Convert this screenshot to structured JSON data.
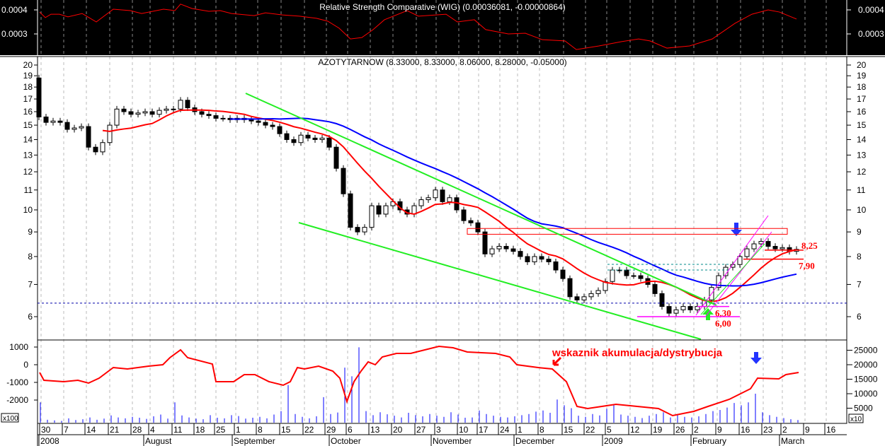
{
  "chart_data": [
    {
      "type": "line",
      "title": "Relative Strength Comparative (WIG) (0.00036081, -0.00000864)",
      "ylim": [
        0.00022,
        0.00043
      ],
      "yticks": [
        "0.0004",
        "0.0003"
      ],
      "ytick_values": [
        0.0004,
        0.0003
      ],
      "x_unit": "trading-step",
      "points": [
        [
          0.1,
          0.000391
        ],
        [
          0.9,
          0.000368
        ],
        [
          1.7,
          0.000382
        ],
        [
          2.9,
          0.000382
        ],
        [
          4.1,
          0.000371
        ],
        [
          6.1,
          0.000385
        ],
        [
          8.1,
          0.00035
        ],
        [
          10.5,
          0.000403
        ],
        [
          12.9,
          0.000397
        ],
        [
          14.5,
          0.000385
        ],
        [
          17.6,
          0.000403
        ],
        [
          19.2,
          0.000397
        ],
        [
          20,
          0.000424
        ],
        [
          21.6,
          0.000406
        ],
        [
          24,
          0.000394
        ],
        [
          25.6,
          0.000397
        ],
        [
          27.2,
          0.000385
        ],
        [
          30.4,
          0.000376
        ],
        [
          32,
          0.000388
        ],
        [
          34.4,
          0.000379
        ],
        [
          36.8,
          0.000374
        ],
        [
          39.2,
          0.000365
        ],
        [
          40.8,
          0.000353
        ],
        [
          42.4,
          0.000324
        ],
        [
          44,
          0.000279
        ],
        [
          45.6,
          0.000285
        ],
        [
          47.2,
          0.000318
        ],
        [
          48.8,
          0.000359
        ],
        [
          52,
          0.000397
        ],
        [
          53.6,
          0.000374
        ],
        [
          57.5,
          0.000382
        ],
        [
          59.1,
          0.00035
        ],
        [
          61.5,
          0.000359
        ],
        [
          63.1,
          0.000318
        ],
        [
          66.3,
          0.0003
        ],
        [
          68.7,
          0.000303
        ],
        [
          71.1,
          0.000276
        ],
        [
          74.3,
          0.000271
        ],
        [
          75.9,
          0.000235
        ],
        [
          79.1,
          0.00025
        ],
        [
          82.3,
          0.000268
        ],
        [
          84.7,
          0.000279
        ],
        [
          86.3,
          0.000271
        ],
        [
          88.7,
          0.000241
        ],
        [
          91.9,
          0.00025
        ],
        [
          95.1,
          0.000279
        ],
        [
          98.3,
          0.000344
        ],
        [
          100.7,
          0.000382
        ],
        [
          103,
          0.0004
        ],
        [
          104.6,
          0.000391
        ],
        [
          107,
          0.000362
        ]
      ]
    },
    {
      "type": "candlestick",
      "title": "AZOTYTARNOW (8.33000, 8.33000, 8.06000, 8.28000, -0.05000)",
      "yscale": "log",
      "ylim": [
        5.2,
        21
      ],
      "yticks": [
        "20",
        "19",
        "18",
        "17",
        "16",
        "15",
        "14",
        "13",
        "12",
        "11",
        "10",
        "9",
        "8",
        "7",
        "6"
      ],
      "first_open": 18.8,
      "closes": [
        15.6,
        15.2,
        15.3,
        15.2,
        14.7,
        14.8,
        14.9,
        13.5,
        13.2,
        13.8,
        15.0,
        16.2,
        16.0,
        15.8,
        15.9,
        16.0,
        15.8,
        16.1,
        16.2,
        16.2,
        16.9,
        16.3,
        16.0,
        15.8,
        15.7,
        15.5,
        15.5,
        15.4,
        15.5,
        15.4,
        15.3,
        15.2,
        15.0,
        14.9,
        14.4,
        14.0,
        13.8,
        14.3,
        14.1,
        14.0,
        14.1,
        13.5,
        12.2,
        10.8,
        9.2,
        9.0,
        9.2,
        10.2,
        9.8,
        10.2,
        10.4,
        10.0,
        9.8,
        10.2,
        10.5,
        10.6,
        11.0,
        10.4,
        10.6,
        10.0,
        9.5,
        9.4,
        9.0,
        8.1,
        8.3,
        8.4,
        8.3,
        8.2,
        8.0,
        7.8,
        8.0,
        7.9,
        7.8,
        7.5,
        7.2,
        6.6,
        6.5,
        6.6,
        6.7,
        6.8,
        7.1,
        7.5,
        7.5,
        7.3,
        7.3,
        7.2,
        7.0,
        6.7,
        6.3,
        6.1,
        6.2,
        6.3,
        6.2,
        6.3,
        6.5,
        6.9,
        7.3,
        7.6,
        7.7,
        8.0,
        8.3,
        8.5,
        8.6,
        8.4,
        8.3,
        8.35,
        8.2,
        8.28
      ],
      "moving_averages": [
        {
          "name": "short",
          "color": "#ff0000",
          "period": 10
        },
        {
          "name": "long",
          "color": "#0000ff",
          "period": 28
        }
      ],
      "levels": [
        {
          "label": "8,25",
          "value": 8.25
        },
        {
          "label": "7,90",
          "value": 7.9
        },
        {
          "label": "6,30",
          "value": 6.3
        },
        {
          "label": "6,00",
          "value": 6.0
        }
      ],
      "resistance_zone": [
        8.9,
        9.15
      ],
      "support_dotted": 6.4
    },
    {
      "type": "line+bar",
      "title": "wskaznik akumulacja/dystrybucja",
      "left_yticks": [
        "1000",
        "0",
        "-1000",
        "-2000"
      ],
      "left_ytick_values": [
        1000,
        0,
        -1000,
        -2000
      ],
      "left_unit": "x100",
      "right_yticks": [
        "25000",
        "20000",
        "15000",
        "10000",
        "5000"
      ],
      "right_ytick_values": [
        25000,
        20000,
        15000,
        10000,
        5000
      ],
      "right_unit": "x10",
      "ad_points": [
        [
          0.1,
          -440
        ],
        [
          0.7,
          -880
        ],
        [
          3.5,
          -960
        ],
        [
          5.5,
          -880
        ],
        [
          7,
          -1040
        ],
        [
          8.5,
          -760
        ],
        [
          10.5,
          -160
        ],
        [
          12.5,
          -240
        ],
        [
          15.5,
          -80
        ],
        [
          17.5,
          0
        ],
        [
          18.5,
          400
        ],
        [
          20,
          840
        ],
        [
          21,
          400
        ],
        [
          24.5,
          40
        ],
        [
          25,
          -960
        ],
        [
          27.5,
          -960
        ],
        [
          29,
          -560
        ],
        [
          30.5,
          -560
        ],
        [
          32.5,
          -960
        ],
        [
          34.5,
          -1160
        ],
        [
          35.5,
          -960
        ],
        [
          36.5,
          -160
        ],
        [
          37.5,
          -240
        ],
        [
          39.5,
          -80
        ],
        [
          41.5,
          -360
        ],
        [
          42.5,
          -760
        ],
        [
          43.5,
          -2080
        ],
        [
          44.5,
          -960
        ],
        [
          45.5,
          -360
        ],
        [
          46.5,
          160
        ],
        [
          47.5,
          0
        ],
        [
          48.5,
          440
        ],
        [
          50.5,
          640
        ],
        [
          52.5,
          640
        ],
        [
          54.5,
          840
        ],
        [
          56.5,
          1040
        ],
        [
          58.5,
          960
        ],
        [
          60.5,
          720
        ],
        [
          64.5,
          640
        ],
        [
          66.5,
          440
        ],
        [
          67.5,
          0
        ],
        [
          70.5,
          -160
        ],
        [
          72.5,
          -240
        ],
        [
          74.5,
          -960
        ],
        [
          76,
          -2360
        ],
        [
          77.5,
          -2480
        ],
        [
          79.5,
          -2360
        ],
        [
          81.5,
          -2240
        ],
        [
          84.5,
          -2360
        ],
        [
          87.5,
          -2480
        ],
        [
          89.5,
          -2880
        ],
        [
          92.5,
          -2640
        ],
        [
          94.5,
          -2360
        ],
        [
          97.5,
          -1960
        ],
        [
          100.5,
          -1360
        ],
        [
          101.5,
          -760
        ],
        [
          104.5,
          -800
        ],
        [
          105.5,
          -560
        ],
        [
          107.3,
          -440
        ]
      ],
      "volume": [
        7000,
        1000,
        800,
        600,
        1500,
        900,
        1200,
        1800,
        1000,
        1400,
        2500,
        1800,
        1500,
        2000,
        1700,
        1300,
        2200,
        2800,
        1400,
        7000,
        2500,
        1800,
        1400,
        1200,
        2600,
        1700,
        1500,
        2600,
        2300,
        1400,
        1700,
        2000,
        1500,
        2800,
        4000,
        13000,
        3000,
        2000,
        1500,
        2200,
        8800,
        3000,
        3500,
        19000,
        16000,
        26000,
        4000,
        2600,
        3600,
        2900,
        2400,
        1800,
        3400,
        2600,
        2200,
        3000,
        2400,
        2000,
        3600,
        2800,
        1700,
        1800,
        4200,
        3000,
        2400,
        2000,
        1800,
        2200,
        2600,
        3000,
        3800,
        4200,
        3400,
        8000,
        6000,
        5000,
        2400,
        2000,
        3000,
        2500,
        4800,
        6000,
        2800,
        2400,
        2000,
        1600,
        2400,
        3000,
        3600,
        1800,
        2600,
        2000,
        1800,
        2200,
        3000,
        4000,
        4400,
        5200,
        6800,
        6000,
        7000,
        10000,
        3600,
        2600,
        2000,
        1600,
        1200,
        900
      ]
    }
  ],
  "date_axis": {
    "days": [
      "30",
      "7",
      "14",
      "21",
      "28",
      "4",
      "11",
      "18",
      "25",
      "1",
      "8",
      "15",
      "22",
      "29",
      "6",
      "13",
      "20",
      "27",
      "3",
      "10",
      "17",
      "24",
      "1",
      "8",
      "15",
      "22",
      "5",
      "12",
      "19",
      "26",
      "2",
      "9",
      "16",
      "23",
      "2",
      "9",
      "16"
    ],
    "months": [
      "2008",
      "August",
      "September",
      "October",
      "November",
      "December",
      "2009",
      "February",
      "March"
    ]
  },
  "colors": {
    "price_short_ma": "#ff0000",
    "price_long_ma": "#0000ff",
    "trendlines": "#22ee22",
    "channel": "#ff00ff",
    "volume": "#0000ff",
    "annotation": "#ff0000"
  }
}
